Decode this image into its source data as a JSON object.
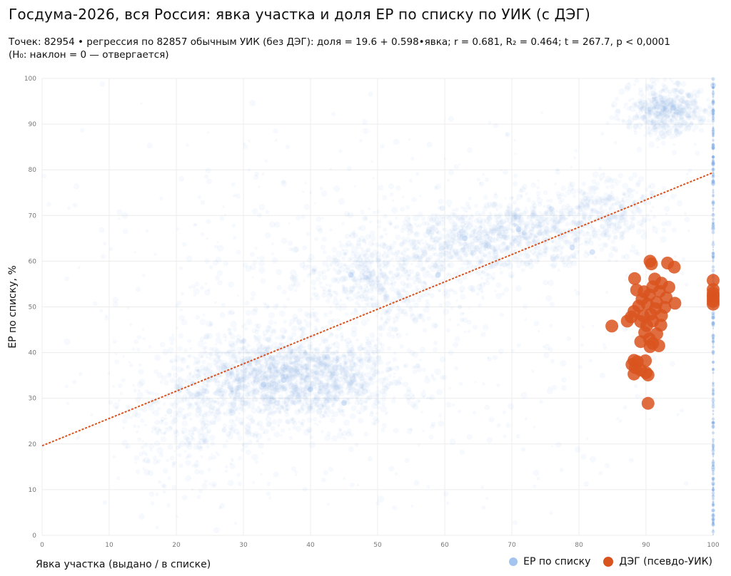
{
  "header": {
    "title": "Госдума-2026, вся Россия: явка участка и доля ЕР по списку по УИК (с ДЭГ)",
    "subtitle_line1": "Точек: 82954 • регрессия по 82857 обычным УИК (без ДЭГ): доля = 19.6 + 0.598•явка; r = 0.681, R₂ = 0.464; t = 267.7, p < 0,0001",
    "subtitle_line2": "(H₀: наклон = 0 — отвергается)"
  },
  "chart_data": {
    "type": "scatter",
    "title": "Госдума-2026, вся Россия: явка участка и доля ЕР по списку по УИК (с ДЭГ)",
    "xlabel": "Явка участка (выдано / в списке)",
    "ylabel": "ЕР по списку, %",
    "xlim": [
      0,
      100
    ],
    "ylim": [
      0,
      100
    ],
    "x_ticks": [
      0,
      10,
      20,
      30,
      40,
      50,
      60,
      70,
      80,
      90,
      100
    ],
    "y_ticks": [
      0,
      10,
      20,
      30,
      40,
      50,
      60,
      70,
      80,
      90,
      100
    ],
    "grid": true,
    "legend_placement": "bottom-right",
    "regression": {
      "intercept": 19.6,
      "slope": 0.598,
      "x_range": [
        0,
        100
      ],
      "color": "#d9531e"
    },
    "series": [
      {
        "name": "ЕР по списку",
        "color": "#7aaae8",
        "density_clusters": [
          {
            "cx": 37,
            "cy": 35,
            "sx": 8,
            "sy": 5,
            "weight": 0.34
          },
          {
            "cx": 50,
            "cy": 56,
            "sx": 6,
            "sy": 5,
            "weight": 0.1
          },
          {
            "cx": 64,
            "cy": 64,
            "sx": 6,
            "sy": 4,
            "weight": 0.11
          },
          {
            "cx": 74,
            "cy": 67,
            "sx": 5,
            "sy": 4,
            "weight": 0.08
          },
          {
            "cx": 85,
            "cy": 71,
            "sx": 4,
            "sy": 4,
            "weight": 0.06
          },
          {
            "cx": 93,
            "cy": 93,
            "sx": 3,
            "sy": 3,
            "weight": 0.1
          },
          {
            "cx": 22,
            "cy": 24,
            "sx": 6,
            "sy": 8,
            "weight": 0.07
          },
          {
            "cx": 50,
            "cy": 50,
            "sx": 25,
            "sy": 22,
            "weight": 0.14
          }
        ],
        "points": [
          {
            "x": 94,
            "y": 93.5
          },
          {
            "x": 63,
            "y": 65
          },
          {
            "x": 79,
            "y": 63
          },
          {
            "x": 82,
            "y": 62
          },
          {
            "x": 71,
            "y": 67
          },
          {
            "x": 36,
            "y": 34
          },
          {
            "x": 40,
            "y": 32
          },
          {
            "x": 33,
            "y": 33
          },
          {
            "x": 45,
            "y": 29
          },
          {
            "x": 46,
            "y": 57
          },
          {
            "x": 59,
            "y": 57
          },
          {
            "x": 100,
            "y": 98.5
          }
        ]
      },
      {
        "name": "ДЭГ (псевдо-УИК)",
        "color": "#d9531e",
        "points": [
          {
            "x": 90.6,
            "y": 60.0
          },
          {
            "x": 90.8,
            "y": 59.4
          },
          {
            "x": 93.2,
            "y": 59.6
          },
          {
            "x": 94.2,
            "y": 58.7
          },
          {
            "x": 88.3,
            "y": 56.2
          },
          {
            "x": 91.3,
            "y": 56.1
          },
          {
            "x": 92.3,
            "y": 55.2
          },
          {
            "x": 91.0,
            "y": 54.4
          },
          {
            "x": 93.4,
            "y": 54.3
          },
          {
            "x": 88.6,
            "y": 53.7
          },
          {
            "x": 89.7,
            "y": 53.3
          },
          {
            "x": 92.0,
            "y": 53.4
          },
          {
            "x": 90.5,
            "y": 52.6
          },
          {
            "x": 89.4,
            "y": 51.7
          },
          {
            "x": 93.0,
            "y": 52.0
          },
          {
            "x": 91.6,
            "y": 51.0
          },
          {
            "x": 94.3,
            "y": 50.8
          },
          {
            "x": 88.9,
            "y": 50.2
          },
          {
            "x": 90.2,
            "y": 50.6
          },
          {
            "x": 91.4,
            "y": 49.6
          },
          {
            "x": 92.8,
            "y": 49.9
          },
          {
            "x": 88.2,
            "y": 49.0
          },
          {
            "x": 90.7,
            "y": 48.4
          },
          {
            "x": 89.6,
            "y": 48.0
          },
          {
            "x": 92.3,
            "y": 48.1
          },
          {
            "x": 87.8,
            "y": 47.8
          },
          {
            "x": 89.2,
            "y": 46.8
          },
          {
            "x": 91.0,
            "y": 46.9
          },
          {
            "x": 90.1,
            "y": 45.9
          },
          {
            "x": 92.2,
            "y": 46.0
          },
          {
            "x": 84.9,
            "y": 45.8
          },
          {
            "x": 87.2,
            "y": 46.9
          },
          {
            "x": 89.8,
            "y": 44.4
          },
          {
            "x": 91.6,
            "y": 44.1
          },
          {
            "x": 90.5,
            "y": 43.0
          },
          {
            "x": 89.2,
            "y": 42.4
          },
          {
            "x": 91.0,
            "y": 42.0
          },
          {
            "x": 91.9,
            "y": 41.5
          },
          {
            "x": 90.6,
            "y": 41.3
          },
          {
            "x": 88.2,
            "y": 38.3
          },
          {
            "x": 88.7,
            "y": 38.0
          },
          {
            "x": 89.9,
            "y": 38.2
          },
          {
            "x": 87.9,
            "y": 37.4
          },
          {
            "x": 88.4,
            "y": 36.7
          },
          {
            "x": 89.2,
            "y": 36.2
          },
          {
            "x": 90.0,
            "y": 35.6
          },
          {
            "x": 88.2,
            "y": 35.3
          },
          {
            "x": 90.3,
            "y": 35.1
          },
          {
            "x": 90.3,
            "y": 28.9
          },
          {
            "x": 100,
            "y": 55.8
          },
          {
            "x": 100,
            "y": 53.8
          },
          {
            "x": 100,
            "y": 53.0
          },
          {
            "x": 100,
            "y": 52.4
          },
          {
            "x": 100,
            "y": 51.8
          },
          {
            "x": 100,
            "y": 51.2
          },
          {
            "x": 100,
            "y": 50.6
          }
        ]
      }
    ]
  },
  "legend": {
    "items": [
      {
        "label": "ЕР по списку",
        "color": "#7aaae8"
      },
      {
        "label": "ДЭГ (псевдо-УИК)",
        "color": "#d9531e"
      }
    ]
  }
}
